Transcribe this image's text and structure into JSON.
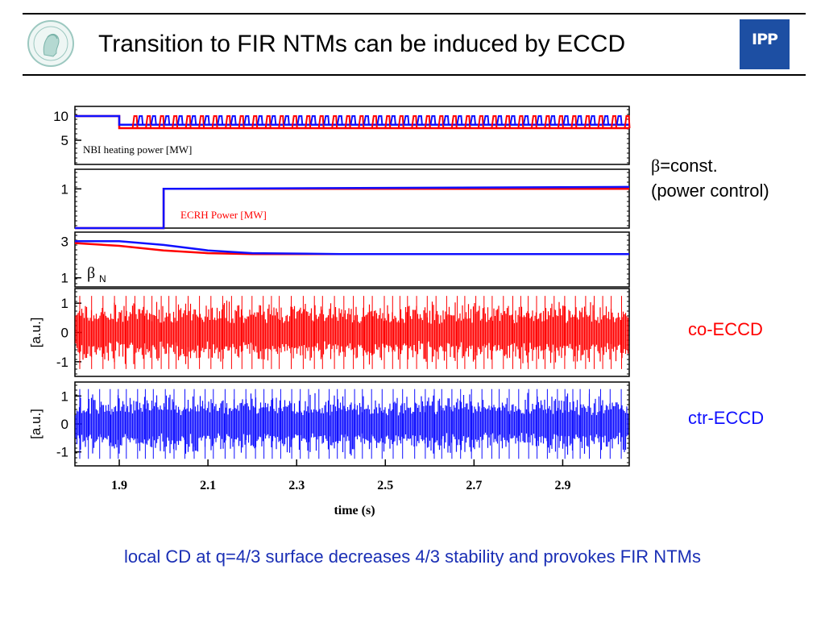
{
  "header": {
    "title": "Transition to FIR NTMs can be induced by ECCD",
    "logo_right": "IPP"
  },
  "side_labels": {
    "beta_symbol": "β",
    "beta_const": "=const.",
    "power_control": "(power control)",
    "co_eccd": "co-ECCD",
    "ctr_eccd": "ctr-ECCD"
  },
  "caption": "local CD at q=4/3 surface decreases 4/3 stability and provokes FIR NTMs",
  "colors": {
    "co": "#ff0000",
    "ctr": "#1010ff",
    "caption": "#1a2fb5"
  },
  "chart_data": [
    {
      "type": "line",
      "panel": "nbi",
      "title": "NBI heating power [MW]",
      "xlim": [
        1.8,
        3.05
      ],
      "ylim": [
        0,
        12
      ],
      "yticks": [
        "10",
        "5"
      ],
      "ytick_values": [
        10,
        5
      ],
      "description_pattern": "10 MW until ~1.9 s, then ~7.5 MW with periodic modulation spikes to ~10 MW",
      "series": [
        {
          "color": "#ff0000",
          "x": [
            1.8,
            1.9,
            1.9,
            3.05
          ],
          "y": [
            10,
            10,
            7.5,
            7.5
          ]
        },
        {
          "color": "#1010ff",
          "x": [
            1.8,
            1.9,
            1.9,
            3.05
          ],
          "y": [
            10,
            10,
            8.2,
            8.2
          ]
        }
      ]
    },
    {
      "type": "line",
      "panel": "ecrh",
      "title": "ECRH Power [MW]",
      "xlim": [
        1.8,
        3.05
      ],
      "ylim": [
        0,
        1.5
      ],
      "yticks": [
        "1"
      ],
      "ytick_values": [
        1
      ],
      "series": [
        {
          "color": "#ff0000",
          "x": [
            1.8,
            2.0,
            2.0,
            3.05
          ],
          "y": [
            0,
            0,
            1.0,
            1.0
          ]
        },
        {
          "color": "#1010ff",
          "x": [
            1.8,
            2.0,
            2.0,
            3.05
          ],
          "y": [
            0,
            0,
            1.0,
            1.05
          ]
        }
      ]
    },
    {
      "type": "line",
      "panel": "beta",
      "title": "β N",
      "xlim": [
        1.8,
        3.05
      ],
      "ylim": [
        0.5,
        3.5
      ],
      "yticks": [
        "3",
        "1"
      ],
      "ytick_values": [
        3,
        1
      ],
      "series": [
        {
          "color": "#ff0000",
          "x": [
            1.8,
            1.9,
            2.0,
            2.1,
            2.2,
            2.4,
            3.05
          ],
          "y": [
            2.9,
            2.75,
            2.5,
            2.35,
            2.3,
            2.3,
            2.3
          ]
        },
        {
          "color": "#1010ff",
          "x": [
            1.8,
            1.9,
            2.0,
            2.1,
            2.2,
            2.4,
            3.05
          ],
          "y": [
            3.0,
            3.0,
            2.8,
            2.5,
            2.35,
            2.3,
            2.3
          ]
        }
      ]
    },
    {
      "type": "line",
      "panel": "co-eccd",
      "ylabel": "[a.u.]",
      "xlim": [
        1.8,
        3.05
      ],
      "ylim": [
        -1.5,
        1.5
      ],
      "yticks": [
        "1",
        "0",
        "-1"
      ],
      "ytick_values": [
        1,
        0,
        -1
      ],
      "series": [
        {
          "color": "#ff0000",
          "envelope": [
            -1.0,
            1.0
          ]
        }
      ]
    },
    {
      "type": "line",
      "panel": "ctr-eccd",
      "ylabel": "[a.u.]",
      "xlim": [
        1.8,
        3.05
      ],
      "ylim": [
        -1.5,
        1.5
      ],
      "yticks": [
        "1",
        "0",
        "-1"
      ],
      "ytick_values": [
        1,
        0,
        -1
      ],
      "xlabel": "time  (s)",
      "xticks": [
        "1.9",
        "2.1",
        "2.3",
        "2.5",
        "2.7",
        "2.9"
      ],
      "xtick_values": [
        1.9,
        2.1,
        2.3,
        2.5,
        2.7,
        2.9
      ],
      "series": [
        {
          "color": "#1010ff",
          "envelope": [
            -1.0,
            1.0
          ]
        }
      ]
    }
  ]
}
